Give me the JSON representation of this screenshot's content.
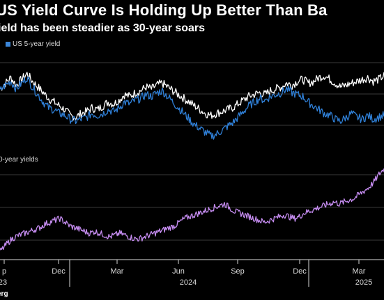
{
  "header": {
    "title": "US Yield Curve Is Holding Up Better Than Ba",
    "subtitle": "ield has been steadier as 30-year soars"
  },
  "source": "erg",
  "colors": {
    "background": "#000000",
    "series_30y": "#ffffff",
    "series_5y": "#2f7fd6",
    "spread": "#c58cf0",
    "grid": "#3a3a3a"
  },
  "chart_data": [
    {
      "type": "line",
      "title": "",
      "legend": [
        {
          "label": "US 5-year yield",
          "color": "#2f7fd6"
        }
      ],
      "legend_position": "top-left",
      "grid": true,
      "x_range": [
        0,
        100
      ],
      "ylim": [
        0,
        100
      ],
      "series": [
        {
          "name": "",
          "color": "#ffffff",
          "values": [
            62,
            68,
            74,
            66,
            72,
            78,
            70,
            64,
            58,
            52,
            48,
            44,
            40,
            34,
            32,
            36,
            38,
            42,
            40,
            44,
            48,
            46,
            50,
            56,
            54,
            58,
            60,
            64,
            62,
            66,
            68,
            64,
            60,
            56,
            52,
            48,
            44,
            40,
            36,
            34,
            36,
            38,
            40,
            42,
            46,
            50,
            54,
            56,
            58,
            56,
            60,
            62,
            64,
            68,
            66,
            70,
            72,
            68,
            70,
            74,
            76,
            72,
            68,
            64,
            66,
            68,
            70,
            72,
            74,
            70,
            72,
            76
          ]
        },
        {
          "name": "US 5-year yield",
          "color": "#2f7fd6",
          "values": [
            60,
            66,
            70,
            62,
            68,
            74,
            64,
            56,
            48,
            42,
            40,
            36,
            34,
            30,
            28,
            30,
            32,
            36,
            34,
            36,
            40,
            38,
            42,
            48,
            46,
            50,
            52,
            56,
            54,
            58,
            60,
            54,
            48,
            42,
            36,
            30,
            24,
            20,
            16,
            12,
            14,
            18,
            22,
            26,
            32,
            38,
            44,
            48,
            52,
            50,
            54,
            56,
            58,
            62,
            58,
            56,
            54,
            48,
            44,
            40,
            36,
            34,
            30,
            28,
            32,
            36,
            32,
            30,
            34,
            30,
            32,
            34
          ]
        }
      ]
    },
    {
      "type": "line",
      "title": "",
      "label": "0-year yields",
      "grid": true,
      "x_range": [
        0,
        100
      ],
      "ylim": [
        0,
        100
      ],
      "series": [
        {
          "name": "",
          "color": "#c58cf0",
          "values": [
            8,
            14,
            20,
            24,
            26,
            28,
            30,
            32,
            34,
            38,
            40,
            42,
            44,
            40,
            36,
            34,
            32,
            30,
            28,
            30,
            28,
            26,
            24,
            26,
            28,
            26,
            24,
            22,
            22,
            24,
            26,
            28,
            30,
            32,
            34,
            36,
            40,
            44,
            46,
            48,
            50,
            52,
            54,
            56,
            58,
            60,
            56,
            52,
            50,
            48,
            46,
            44,
            42,
            40,
            42,
            44,
            46,
            48,
            46,
            44,
            46,
            50,
            52,
            54,
            56,
            58,
            60,
            62,
            60,
            62,
            64,
            66,
            70,
            74,
            78,
            84,
            92,
            98
          ]
        }
      ]
    }
  ],
  "x_axis": {
    "ticks": [
      "p",
      "Dec",
      "Mar",
      "Jun",
      "Sep",
      "Dec",
      "Mar"
    ],
    "years": [
      "23",
      "2024",
      "2025"
    ]
  }
}
